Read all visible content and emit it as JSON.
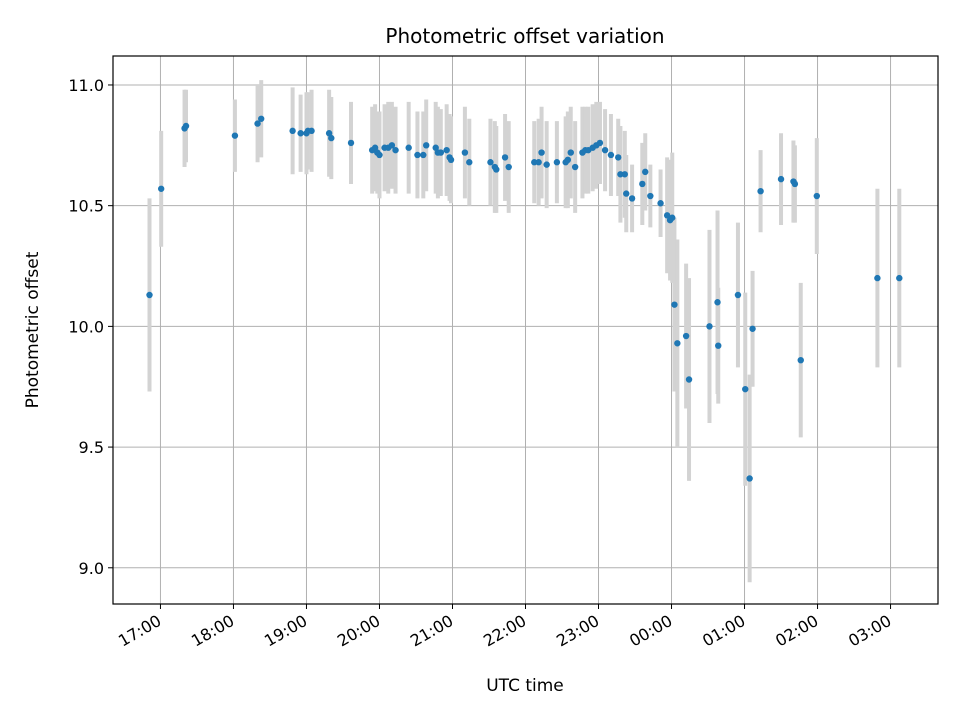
{
  "chart_data": {
    "type": "scatter",
    "title": "Photometric offset variation",
    "xlabel": "UTC time",
    "ylabel": "Photometric offset",
    "ylim": [
      8.85,
      11.12
    ],
    "xlim_hours": [
      16.35,
      27.65
    ],
    "yticks": [
      9.0,
      9.5,
      10.0,
      10.5,
      11.0
    ],
    "ytick_labels": [
      "9.0",
      "9.5",
      "10.0",
      "10.5",
      "11.0"
    ],
    "xticks_hours": [
      17,
      18,
      19,
      20,
      21,
      22,
      23,
      24,
      25,
      26,
      27
    ],
    "xtick_labels": [
      "17:00",
      "18:00",
      "19:00",
      "20:00",
      "21:00",
      "22:00",
      "23:00",
      "00:00",
      "01:00",
      "02:00",
      "03:00"
    ],
    "grid": true,
    "colors": {
      "point": "#1f77b4",
      "errorbar": "#d3d3d3",
      "grid": "#b0b0b0"
    },
    "series": [
      {
        "name": "offset",
        "x_hours": [
          16.85,
          17.01,
          17.33,
          17.35,
          18.02,
          18.33,
          18.38,
          18.81,
          18.92,
          19.0,
          19.02,
          19.07,
          19.31,
          19.34,
          19.61,
          19.9,
          19.94,
          19.97,
          20.0,
          20.07,
          20.12,
          20.17,
          20.22,
          20.4,
          20.52,
          20.6,
          20.64,
          20.77,
          20.8,
          20.84,
          20.92,
          20.96,
          20.98,
          21.17,
          21.23,
          21.52,
          21.58,
          21.6,
          21.72,
          21.77,
          22.12,
          22.18,
          22.22,
          22.29,
          22.43,
          22.55,
          22.58,
          22.62,
          22.68,
          22.78,
          22.82,
          22.86,
          22.92,
          22.97,
          23.02,
          23.09,
          23.17,
          23.27,
          23.3,
          23.36,
          23.38,
          23.46,
          23.6,
          23.64,
          23.71,
          23.85,
          23.94,
          23.98,
          24.01,
          24.04,
          24.08,
          24.2,
          24.24,
          24.52,
          24.63,
          24.64,
          24.91,
          25.01,
          25.07,
          25.11,
          25.22,
          25.5,
          25.67,
          25.69,
          25.77,
          25.99,
          26.82,
          27.12
        ],
        "y": [
          10.13,
          10.57,
          10.82,
          10.83,
          10.79,
          10.84,
          10.86,
          10.81,
          10.8,
          10.8,
          10.81,
          10.81,
          10.8,
          10.78,
          10.76,
          10.73,
          10.74,
          10.72,
          10.71,
          10.74,
          10.74,
          10.75,
          10.73,
          10.74,
          10.71,
          10.71,
          10.75,
          10.74,
          10.72,
          10.72,
          10.73,
          10.7,
          10.69,
          10.72,
          10.68,
          10.68,
          10.66,
          10.65,
          10.7,
          10.66,
          10.68,
          10.68,
          10.72,
          10.67,
          10.68,
          10.68,
          10.69,
          10.72,
          10.66,
          10.72,
          10.73,
          10.73,
          10.74,
          10.75,
          10.76,
          10.73,
          10.71,
          10.7,
          10.63,
          10.63,
          10.55,
          10.53,
          10.59,
          10.64,
          10.54,
          10.51,
          10.46,
          10.44,
          10.45,
          10.09,
          9.93,
          9.96,
          9.78,
          10.0,
          10.1,
          9.92,
          10.13,
          9.74,
          9.37,
          9.99,
          10.56,
          10.61,
          10.6,
          10.59,
          9.86,
          10.54,
          10.2,
          10.2
        ],
        "err": [
          0.4,
          0.24,
          0.16,
          0.15,
          0.15,
          0.16,
          0.16,
          0.18,
          0.16,
          0.17,
          0.16,
          0.17,
          0.18,
          0.17,
          0.17,
          0.18,
          0.18,
          0.17,
          0.18,
          0.18,
          0.19,
          0.18,
          0.18,
          0.19,
          0.18,
          0.18,
          0.19,
          0.19,
          0.19,
          0.18,
          0.19,
          0.18,
          0.18,
          0.19,
          0.18,
          0.18,
          0.19,
          0.18,
          0.18,
          0.19,
          0.17,
          0.18,
          0.19,
          0.18,
          0.17,
          0.19,
          0.2,
          0.19,
          0.19,
          0.19,
          0.18,
          0.18,
          0.18,
          0.18,
          0.17,
          0.17,
          0.17,
          0.16,
          0.2,
          0.18,
          0.16,
          0.14,
          0.17,
          0.16,
          0.13,
          0.14,
          0.24,
          0.25,
          0.27,
          0.36,
          0.43,
          0.3,
          0.42,
          0.4,
          0.38,
          0.24,
          0.3,
          0.4,
          0.43,
          0.24,
          0.17,
          0.19,
          0.17,
          0.16,
          0.32,
          0.24,
          0.37,
          0.37
        ]
      }
    ]
  }
}
